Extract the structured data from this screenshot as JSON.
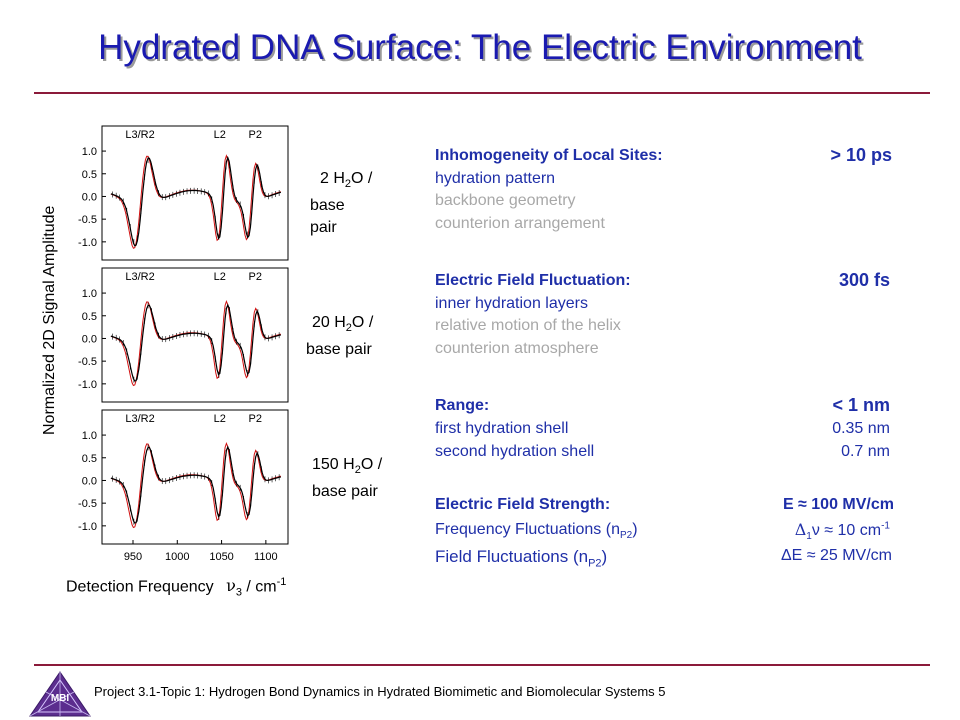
{
  "title": "Hydrated DNA Surface: The Electric Environment",
  "chart": {
    "ylabel": "Normalized 2D Signal Amplitude",
    "yticks": [
      "1.0",
      "0.5",
      "0.0",
      "-0.5",
      "-1.0"
    ],
    "xticks": [
      "950",
      "1000",
      "1050",
      "1100"
    ],
    "xlabel_prefix": "Detection Frequency",
    "xlabel_symbol": "ν",
    "xlabel_sub": "3",
    "xlabel_unit": "/ cm",
    "xlabel_sup": "-1",
    "peak_labels": [
      "L3/R2",
      "L2",
      "P2"
    ],
    "panels": [
      {
        "water_num": "2 H",
        "water_sub": "2",
        "water_rest": "O /",
        "line2": "base",
        "line3": "pair"
      },
      {
        "water_num": "20 H",
        "water_sub": "2",
        "water_rest": "O /",
        "line2": "base pair"
      },
      {
        "water_num": "150 H",
        "water_sub": "2",
        "water_rest": "O /",
        "line2": "base pair"
      }
    ]
  },
  "sections": [
    {
      "heading": "Inhomogeneity of Local Sites:",
      "value": "> 10 ps",
      "items": [
        {
          "text": "hydration pattern",
          "active": true
        },
        {
          "text": "backbone geometry",
          "active": false
        },
        {
          "text": "counterion arrangement",
          "active": false
        }
      ]
    },
    {
      "heading": "Electric Field Fluctuation:",
      "value": "300 fs",
      "items": [
        {
          "text": "inner hydration layers",
          "active": true
        },
        {
          "text": "relative motion of the helix",
          "active": false
        },
        {
          "text": "counterion atmosphere",
          "active": false
        }
      ]
    },
    {
      "heading": "Range:",
      "value": "< 1 nm",
      "items": [
        {
          "text": "first hydration shell",
          "value": "0.35 nm"
        },
        {
          "text": "second hydration shell",
          "value": "0.7 nm"
        }
      ]
    }
  ],
  "strength": {
    "heading": "Electric Field Strength:",
    "value": "E ≈ 100 MV/cm",
    "freq_label": "Frequency Fluctuations (n",
    "freq_sub": "P2",
    "freq_close": ")",
    "freq_value_pre": "Δ",
    "freq_value_sub": "1",
    "freq_value_mid": "ν ≈ 10 cm",
    "freq_value_sup": "-1",
    "field_label": "Field Fluctuations (n",
    "field_sub": "P2",
    "field_close": ")",
    "field_value": "ΔE ≈ 25 MV/cm"
  },
  "footer": {
    "text": "Project 3.1-Topic 1: Hydrogen Bond Dynamics in Hydrated Biomimetic and Biomolecular Systems 5",
    "logo_text": "MBI"
  },
  "colors": {
    "title": "#1a1ab0",
    "rule": "#8b1a3a",
    "text_blue": "#1f2fa8",
    "text_grey": "#a8a8a8",
    "fit": "#d21010"
  }
}
